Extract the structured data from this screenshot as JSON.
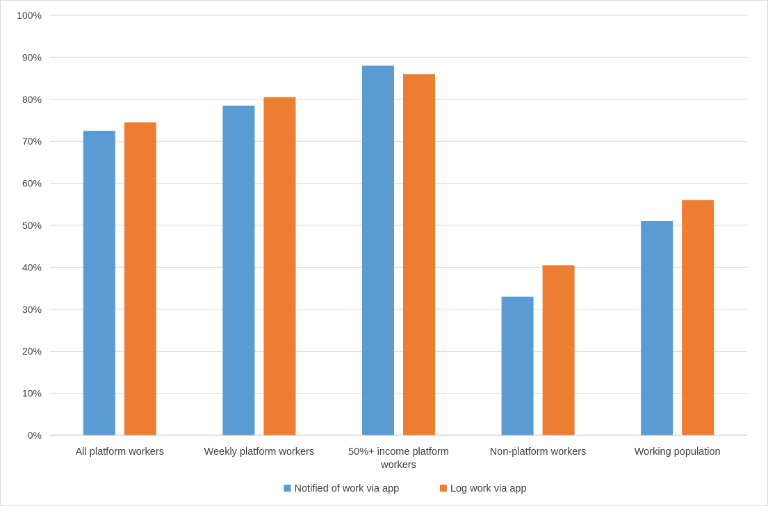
{
  "chart_data": {
    "type": "bar",
    "categories": [
      [
        "All platform workers"
      ],
      [
        "Weekly platform workers"
      ],
      [
        "50%+ income platform",
        "workers"
      ],
      [
        "Non-platform workers"
      ],
      [
        "Working population"
      ]
    ],
    "series": [
      {
        "name": "Notified of work via app",
        "color": "#5b9bd5",
        "values": [
          72.5,
          78.5,
          88,
          33,
          51
        ]
      },
      {
        "name": "Log work via app",
        "color": "#ed7d31",
        "values": [
          74.5,
          80.5,
          86,
          40.5,
          56
        ]
      }
    ],
    "y_ticks": [
      "0%",
      "10%",
      "20%",
      "30%",
      "40%",
      "50%",
      "60%",
      "70%",
      "80%",
      "90%",
      "100%"
    ],
    "ylim": [
      0,
      100
    ],
    "grid": true,
    "legend_position": "bottom"
  },
  "colors": {
    "gridline": "#d9d9d9",
    "axis": "#bfbfbf",
    "text": "#404040",
    "frame": "#d9d9d9"
  }
}
